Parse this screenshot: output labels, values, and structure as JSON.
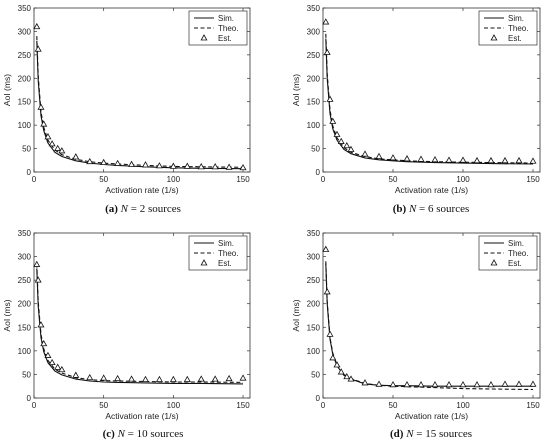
{
  "chart_data": [
    {
      "type": "line",
      "caption": {
        "label": "(a)",
        "n_symbol": "N",
        "n_value": "2",
        "suffix": "sources"
      },
      "xlabel": "Activation rate (1/s)",
      "ylabel": "AoI (ms)",
      "xlim": [
        0,
        155
      ],
      "ylim": [
        0,
        350
      ],
      "xticks": [
        0,
        50,
        100,
        150
      ],
      "yticks": [
        0,
        50,
        100,
        150,
        200,
        250,
        300,
        350
      ],
      "legend": "top-right",
      "grid": false,
      "series": [
        {
          "name": "Sim.",
          "style": "solid",
          "x": [
            2,
            3,
            5,
            7,
            10,
            15,
            20,
            30,
            40,
            50,
            60,
            80,
            100,
            120,
            150
          ],
          "y": [
            280,
            195,
            120,
            88,
            62,
            42,
            33,
            24,
            19,
            16,
            14,
            11,
            9,
            8,
            7
          ]
        },
        {
          "name": "Theo.",
          "style": "dashed",
          "x": [
            2,
            3,
            5,
            7,
            10,
            15,
            20,
            30,
            40,
            50,
            60,
            80,
            100,
            120,
            150
          ],
          "y": [
            290,
            205,
            128,
            95,
            68,
            47,
            37,
            27,
            22,
            19,
            17,
            14,
            12,
            11,
            10
          ]
        },
        {
          "name": "Est.",
          "style": "markers",
          "x": [
            2,
            3,
            5,
            7,
            10,
            13,
            17,
            20,
            30,
            40,
            50,
            60,
            70,
            80,
            90,
            100,
            110,
            120,
            130,
            140,
            150
          ],
          "y": [
            310,
            262,
            138,
            102,
            75,
            60,
            50,
            45,
            32,
            22,
            20,
            18,
            16,
            15,
            13,
            12,
            12,
            11,
            11,
            10,
            9
          ]
        }
      ]
    },
    {
      "type": "line",
      "caption": {
        "label": "(b)",
        "n_symbol": "N",
        "n_value": "6",
        "suffix": "sources"
      },
      "xlabel": "Activation rate (1/s)",
      "ylabel": "AoI (ms)",
      "xlim": [
        0,
        155
      ],
      "ylim": [
        0,
        350
      ],
      "xticks": [
        0,
        50,
        100,
        150
      ],
      "yticks": [
        0,
        50,
        100,
        150,
        200,
        250,
        300,
        350
      ],
      "legend": "top-right",
      "grid": false,
      "series": [
        {
          "name": "Sim.",
          "style": "solid",
          "x": [
            2,
            3,
            5,
            7,
            10,
            15,
            20,
            30,
            40,
            50,
            60,
            80,
            100,
            120,
            150
          ],
          "y": [
            285,
            200,
            125,
            92,
            68,
            48,
            39,
            30,
            26,
            24,
            22,
            20,
            19,
            18,
            17
          ]
        },
        {
          "name": "Theo.",
          "style": "dashed",
          "x": [
            2,
            3,
            5,
            7,
            10,
            15,
            20,
            30,
            40,
            50,
            60,
            80,
            100,
            120,
            150
          ],
          "y": [
            295,
            210,
            132,
            98,
            73,
            52,
            42,
            33,
            28,
            26,
            24,
            22,
            21,
            20,
            19
          ]
        },
        {
          "name": "Est.",
          "style": "markers",
          "x": [
            2,
            3,
            5,
            7,
            10,
            13,
            17,
            20,
            30,
            40,
            50,
            60,
            70,
            80,
            90,
            100,
            110,
            120,
            130,
            140,
            150
          ],
          "y": [
            320,
            255,
            155,
            108,
            80,
            65,
            56,
            48,
            38,
            33,
            30,
            28,
            27,
            26,
            25,
            25,
            24,
            24,
            24,
            24,
            23
          ]
        }
      ]
    },
    {
      "type": "line",
      "caption": {
        "label": "(c)",
        "n_symbol": "N",
        "n_value": "10",
        "suffix": "sources"
      },
      "xlabel": "Activation rate (1/s)",
      "ylabel": "AoI (ms)",
      "xlim": [
        0,
        155
      ],
      "ylim": [
        0,
        350
      ],
      "xticks": [
        0,
        50,
        100,
        150
      ],
      "yticks": [
        0,
        50,
        100,
        150,
        200,
        250,
        300,
        350
      ],
      "legend": "top-right",
      "grid": false,
      "series": [
        {
          "name": "Sim.",
          "style": "solid",
          "x": [
            2,
            3,
            5,
            7,
            10,
            15,
            20,
            30,
            40,
            50,
            60,
            80,
            100,
            120,
            150
          ],
          "y": [
            275,
            195,
            128,
            98,
            75,
            57,
            49,
            40,
            36,
            34,
            33,
            32,
            31,
            31,
            30
          ]
        },
        {
          "name": "Theo.",
          "style": "dashed",
          "x": [
            2,
            3,
            5,
            7,
            10,
            15,
            20,
            30,
            40,
            50,
            60,
            80,
            100,
            120,
            150
          ],
          "y": [
            285,
            205,
            135,
            104,
            80,
            61,
            53,
            43,
            39,
            37,
            36,
            35,
            34,
            34,
            33
          ]
        },
        {
          "name": "Est.",
          "style": "markers",
          "x": [
            2,
            3,
            5,
            7,
            10,
            13,
            17,
            20,
            30,
            40,
            50,
            60,
            70,
            80,
            90,
            100,
            110,
            120,
            130,
            140,
            150
          ],
          "y": [
            283,
            250,
            155,
            115,
            90,
            75,
            65,
            60,
            48,
            43,
            42,
            41,
            40,
            39,
            39,
            39,
            39,
            40,
            40,
            41,
            42
          ]
        }
      ]
    },
    {
      "type": "line",
      "caption": {
        "label": "(d)",
        "n_symbol": "N",
        "n_value": "15",
        "suffix": "sources"
      },
      "xlabel": "Activation rate (1/s)",
      "ylabel": "AoI (ms)",
      "xlim": [
        0,
        155
      ],
      "ylim": [
        0,
        350
      ],
      "xticks": [
        0,
        50,
        100,
        150
      ],
      "yticks": [
        0,
        50,
        100,
        150,
        200,
        250,
        300,
        350
      ],
      "legend": "top-right",
      "grid": false,
      "series": [
        {
          "name": "Sim.",
          "style": "solid",
          "x": [
            2,
            3,
            5,
            7,
            10,
            15,
            20,
            30,
            40,
            50,
            60,
            80,
            100,
            120,
            150
          ],
          "y": [
            285,
            200,
            125,
            92,
            68,
            48,
            40,
            30,
            27,
            26,
            26,
            25,
            25,
            25,
            25
          ]
        },
        {
          "name": "Theo.",
          "style": "dashed",
          "x": [
            2,
            3,
            5,
            7,
            10,
            15,
            20,
            30,
            40,
            50,
            60,
            80,
            100,
            120,
            150
          ],
          "y": [
            290,
            205,
            128,
            95,
            70,
            50,
            41,
            31,
            27,
            25,
            24,
            22,
            20,
            19,
            18
          ]
        },
        {
          "name": "Est.",
          "style": "markers",
          "x": [
            2,
            3,
            5,
            7,
            10,
            13,
            17,
            20,
            30,
            40,
            50,
            60,
            70,
            80,
            90,
            100,
            110,
            120,
            130,
            140,
            150
          ],
          "y": [
            315,
            225,
            135,
            85,
            70,
            55,
            45,
            40,
            32,
            29,
            28,
            28,
            28,
            28,
            28,
            28,
            28,
            28,
            29,
            29,
            29
          ]
        }
      ]
    }
  ]
}
